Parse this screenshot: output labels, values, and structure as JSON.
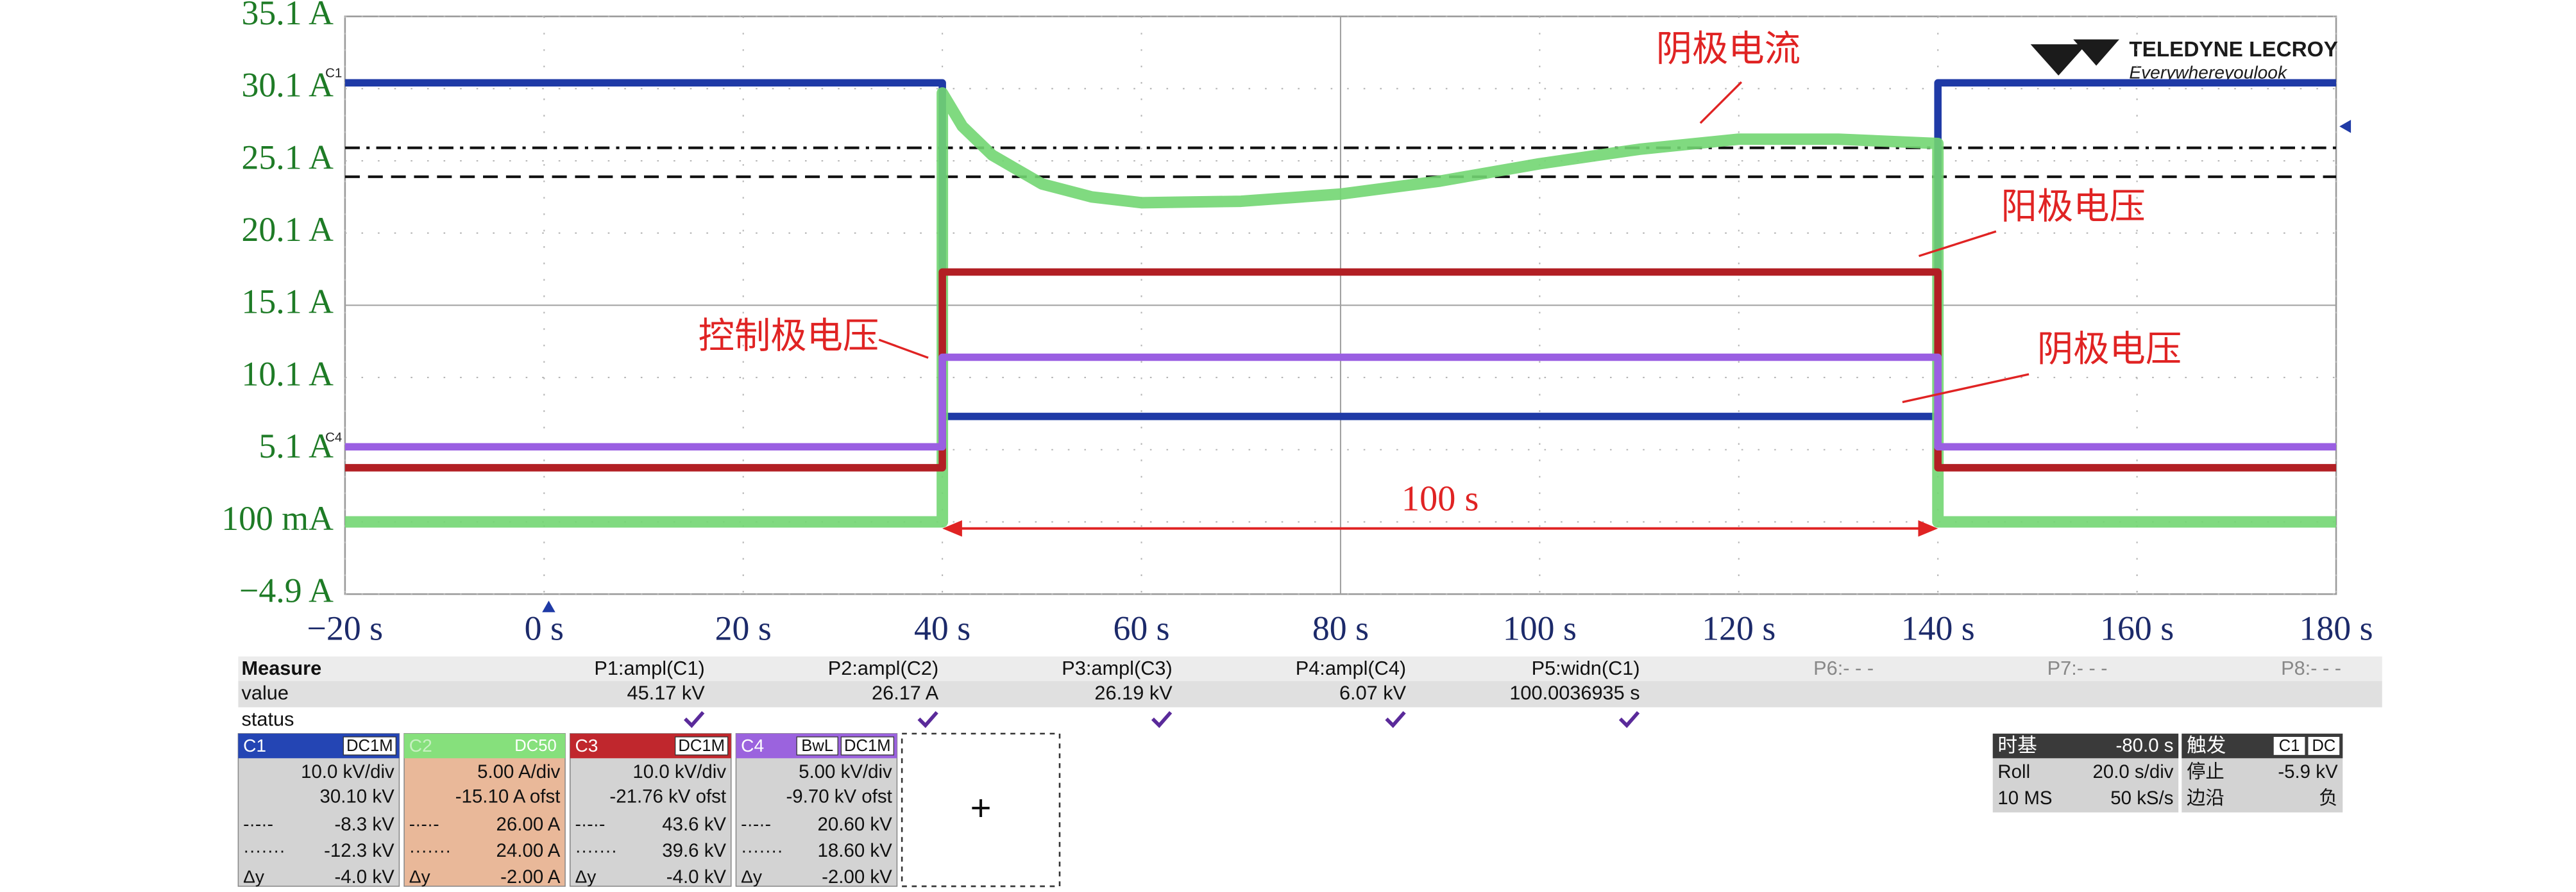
{
  "chart_data": {
    "type": "line",
    "x": [
      -20,
      40,
      40,
      42,
      45,
      50,
      55,
      60,
      70,
      80,
      90,
      100,
      110,
      120,
      130,
      140,
      140,
      180
    ],
    "series": [
      {
        "name": "阴极电压",
        "color": "#1f3aa6",
        "values": [
          30.5,
          30.5,
          7.4,
          7.4,
          7.4,
          7.4,
          7.4,
          7.4,
          7.4,
          7.4,
          7.4,
          7.4,
          7.4,
          7.4,
          7.4,
          7.4,
          30.5,
          30.5
        ]
      },
      {
        "name": "阴极电流",
        "color": "#72d672",
        "values": [
          0.1,
          0.1,
          29.8,
          27.5,
          25.5,
          23.5,
          22.6,
          22.2,
          22.3,
          22.8,
          23.7,
          24.9,
          25.9,
          26.6,
          26.6,
          26.3,
          0.1,
          0.1
        ]
      },
      {
        "name": "阳极电压",
        "color": "#b21f24",
        "values": [
          3.85,
          3.85,
          17.4,
          17.4,
          17.4,
          17.4,
          17.4,
          17.4,
          17.4,
          17.4,
          17.4,
          17.4,
          17.4,
          17.4,
          17.4,
          17.4,
          3.85,
          3.85
        ]
      },
      {
        "name": "控制极电压",
        "color": "#9a5fe2",
        "values": [
          5.3,
          5.3,
          11.5,
          11.5,
          11.5,
          11.5,
          11.5,
          11.5,
          11.5,
          11.5,
          11.5,
          11.5,
          11.5,
          11.5,
          11.5,
          11.5,
          5.3,
          5.3
        ]
      }
    ],
    "xlim": [
      -20,
      180
    ],
    "xticks": [
      {
        "value": -20,
        "label": "−20 s"
      },
      {
        "value": 0,
        "label": "0 s"
      },
      {
        "value": 20,
        "label": "20 s"
      },
      {
        "value": 40,
        "label": "40 s"
      },
      {
        "value": 60,
        "label": "60 s"
      },
      {
        "value": 80,
        "label": "80 s"
      },
      {
        "value": 100,
        "label": "100 s"
      },
      {
        "value": 120,
        "label": "120 s"
      },
      {
        "value": 140,
        "label": "140 s"
      },
      {
        "value": 160,
        "label": "160 s"
      },
      {
        "value": 180,
        "label": "180 s"
      }
    ],
    "ylim": [
      -4.9,
      35.1
    ],
    "yticks": [
      {
        "value": 35.1,
        "label": "35.1 A"
      },
      {
        "value": 30.1,
        "label": "30.1 A"
      },
      {
        "value": 25.1,
        "label": "25.1 A"
      },
      {
        "value": 20.1,
        "label": "20.1 A"
      },
      {
        "value": 15.1,
        "label": "15.1 A"
      },
      {
        "value": 10.1,
        "label": "10.1 A"
      },
      {
        "value": 5.1,
        "label": "5.1 A"
      },
      {
        "value": 0.1,
        "label": "100 mA"
      },
      {
        "value": -4.9,
        "label": "−4.9 A"
      }
    ],
    "grid": true,
    "cursors": [
      {
        "value": 26,
        "style": "dash-dot"
      },
      {
        "value": 24,
        "style": "dash"
      }
    ],
    "annotations": [
      {
        "text": "100 s",
        "x": [
          40,
          140
        ],
        "color": "#e02323"
      }
    ],
    "label_color": "#e02323",
    "ytick_color": "#1e7b26",
    "xtick_color": "#1c2a6a",
    "channel_markers": [
      "C1",
      "C4"
    ]
  },
  "logo": {
    "name": "TELEDYNE LECROY",
    "tagline": "Everywhereyoulook"
  },
  "measure": {
    "title": "Measure",
    "row_labels": [
      "value",
      "status"
    ],
    "params": [
      {
        "name": "P1:ampl(C1)",
        "value": "45.17 kV"
      },
      {
        "name": "P2:ampl(C2)",
        "value": "26.17 A"
      },
      {
        "name": "P3:ampl(C3)",
        "value": "26.19 kV"
      },
      {
        "name": "P4:ampl(C4)",
        "value": "6.07 kV"
      },
      {
        "name": "P5:widn(C1)",
        "value": "100.0036935 s"
      },
      {
        "name": "P6:- - -"
      },
      {
        "name": "P7:- - -"
      },
      {
        "name": "P8:- - -"
      }
    ]
  },
  "channels": [
    {
      "name": "C1",
      "color": "#2445b4",
      "body": "#d3d3d3",
      "badges": [
        "DC1M"
      ],
      "scale": "10.0 kV/div",
      "offset": "30.10 kV",
      "rows": [
        {
          "symbol": "-·-·-",
          "value": "-8.3 kV"
        },
        {
          "symbol": "·······",
          "value": "-12.3 kV"
        },
        {
          "symbol": "Δy",
          "value": "-4.0 kV"
        }
      ]
    },
    {
      "name": "C2",
      "color": "#86e07c",
      "body": "#e9b899",
      "badges": [
        "DC50"
      ],
      "scale": "5.00 A/div",
      "offset": "-15.10 A ofst",
      "rows": [
        {
          "symbol": "-·-·-",
          "value": "26.00 A"
        },
        {
          "symbol": "·······",
          "value": "24.00 A"
        },
        {
          "symbol": "Δy",
          "value": "-2.00 A"
        }
      ]
    },
    {
      "name": "C3",
      "color": "#c0272d",
      "body": "#d3d3d3",
      "badges": [
        "DC1M"
      ],
      "scale": "10.0 kV/div",
      "offset": "-21.76 kV ofst",
      "rows": [
        {
          "symbol": "-·-·-",
          "value": "43.6 kV"
        },
        {
          "symbol": "·······",
          "value": "39.6 kV"
        },
        {
          "symbol": "Δy",
          "value": "-4.0 kV"
        }
      ]
    },
    {
      "name": "C4",
      "color": "#9b63de",
      "body": "#d3d3d3",
      "badges": [
        "BwL",
        "DC1M"
      ],
      "scale": "5.00 kV/div",
      "offset": "-9.70 kV ofst",
      "rows": [
        {
          "symbol": "-·-·-",
          "value": "20.60 kV"
        },
        {
          "symbol": "·······",
          "value": "18.60 kV"
        },
        {
          "symbol": "Δy",
          "value": "-2.00 kV"
        }
      ]
    }
  ],
  "add_button": "+",
  "timebase": {
    "title": "时基",
    "value": "-80.0 s",
    "rows": [
      [
        "Roll",
        "20.0 s/div"
      ],
      [
        "10 MS",
        "50 kS/s"
      ]
    ]
  },
  "trigger": {
    "title": "触发",
    "badges": [
      "C1",
      "DC"
    ],
    "rows": [
      [
        "停止",
        "-5.9 kV"
      ],
      [
        "边沿",
        "负"
      ]
    ]
  }
}
